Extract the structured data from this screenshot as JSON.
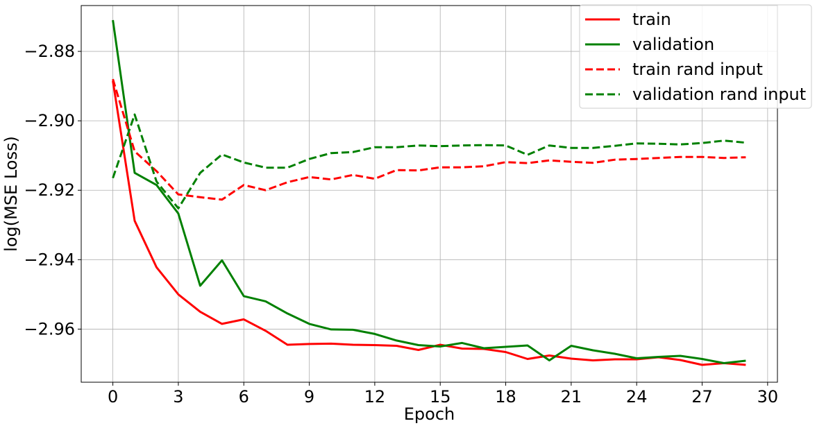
{
  "chart_data": {
    "type": "line",
    "title": "",
    "xlabel": "Epoch",
    "ylabel": "log(MSE Loss)",
    "xlim": [
      -1.45,
      30.45
    ],
    "ylim": [
      -2.9753,
      -2.8668
    ],
    "xticks": [
      0,
      3,
      6,
      9,
      12,
      15,
      18,
      21,
      24,
      27,
      30
    ],
    "xtick_labels": [
      "0",
      "3",
      "6",
      "9",
      "12",
      "15",
      "18",
      "21",
      "24",
      "27",
      "30"
    ],
    "yticks": [
      -2.88,
      -2.9,
      -2.92,
      -2.94,
      -2.96
    ],
    "ytick_labels": [
      "−2.88",
      "−2.90",
      "−2.92",
      "−2.94",
      "−2.96"
    ],
    "grid": true,
    "legend_position": "top-right",
    "x": [
      0,
      1,
      2,
      3,
      4,
      5,
      6,
      7,
      8,
      9,
      10,
      11,
      12,
      13,
      14,
      15,
      16,
      17,
      18,
      19,
      20,
      21,
      22,
      23,
      24,
      25,
      26,
      27,
      28,
      29
    ],
    "series": [
      {
        "name": "train",
        "color": "#ff0000",
        "style": "solid",
        "values": [
          -2.8885,
          -2.9288,
          -2.9422,
          -2.95,
          -2.955,
          -2.9585,
          -2.9572,
          -2.9605,
          -2.9645,
          -2.9643,
          -2.9642,
          -2.9645,
          -2.9646,
          -2.9648,
          -2.966,
          -2.9645,
          -2.9656,
          -2.9657,
          -2.9666,
          -2.9686,
          -2.9676,
          -2.9685,
          -2.969,
          -2.9687,
          -2.9687,
          -2.9681,
          -2.9689,
          -2.9703,
          -2.9698,
          -2.9703
        ]
      },
      {
        "name": "validation",
        "color": "#008000",
        "style": "solid",
        "values": [
          -2.871,
          -2.915,
          -2.9185,
          -2.9267,
          -2.9475,
          -2.9402,
          -2.9505,
          -2.952,
          -2.9555,
          -2.9585,
          -2.9601,
          -2.9602,
          -2.9614,
          -2.9633,
          -2.9646,
          -2.965,
          -2.964,
          -2.9655,
          -2.9651,
          -2.9647,
          -2.969,
          -2.9648,
          -2.9661,
          -2.9671,
          -2.9684,
          -2.968,
          -2.9677,
          -2.9686,
          -2.9698,
          -2.9691
        ]
      },
      {
        "name": "train rand input",
        "color": "#ff0000",
        "style": "dashed",
        "values": [
          -2.888,
          -2.9088,
          -2.9145,
          -2.9212,
          -2.922,
          -2.9227,
          -2.9185,
          -2.92,
          -2.9177,
          -2.9162,
          -2.9169,
          -2.9156,
          -2.9167,
          -2.9142,
          -2.9143,
          -2.9134,
          -2.9134,
          -2.9131,
          -2.9119,
          -2.9122,
          -2.9114,
          -2.9118,
          -2.9121,
          -2.9112,
          -2.911,
          -2.9107,
          -2.9104,
          -2.9104,
          -2.9107,
          -2.9105
        ]
      },
      {
        "name": "validation rand input",
        "color": "#008000",
        "style": "dashed",
        "values": [
          -2.9165,
          -2.8982,
          -2.9175,
          -2.9252,
          -2.915,
          -2.9097,
          -2.912,
          -2.9135,
          -2.9135,
          -2.911,
          -2.9093,
          -2.909,
          -2.9076,
          -2.9076,
          -2.9071,
          -2.9073,
          -2.9071,
          -2.907,
          -2.9071,
          -2.9098,
          -2.9071,
          -2.9078,
          -2.9078,
          -2.9072,
          -2.9065,
          -2.9066,
          -2.9068,
          -2.9064,
          -2.9057,
          -2.9063
        ]
      }
    ]
  }
}
